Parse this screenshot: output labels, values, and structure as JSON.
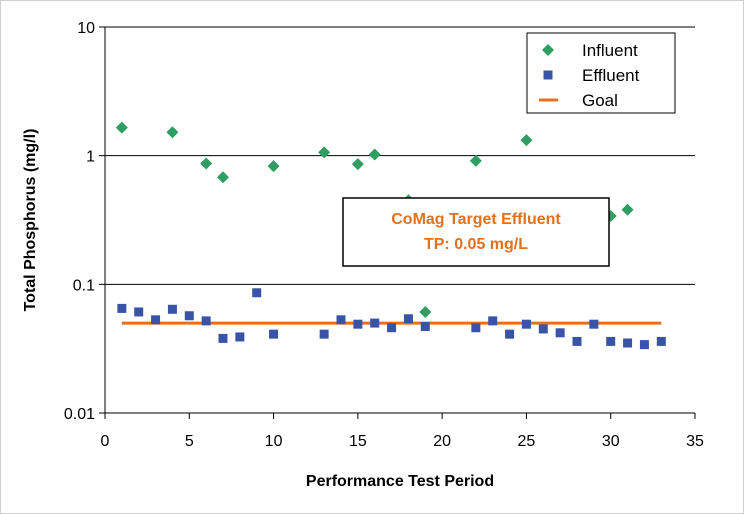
{
  "chart_data": {
    "type": "scatter",
    "xlabel": "Performance Test Period",
    "ylabel": "Total Phosphorus (mg/l)",
    "x_ticks": [
      "0",
      "5",
      "10",
      "15",
      "20",
      "25",
      "30",
      "35"
    ],
    "y_ticks": [
      "0.01",
      "0.1",
      "1",
      "10"
    ],
    "xlim": [
      0,
      35
    ],
    "ylim": [
      0.01,
      10
    ],
    "y_scale": "log",
    "grid": "horizontal lines at each decade",
    "legend_placement": "top-right",
    "annotation": {
      "line1": "CoMag Target Effluent",
      "line2": "TP: 0.05 mg/L"
    },
    "series": [
      {
        "name": "Influent",
        "marker": "diamond",
        "color": "#2e9e62",
        "points": [
          [
            1,
            1.65
          ],
          [
            4,
            1.52
          ],
          [
            6,
            0.87
          ],
          [
            7,
            0.68
          ],
          [
            10,
            0.83
          ],
          [
            13,
            1.06
          ],
          [
            15,
            0.86
          ],
          [
            16,
            1.02
          ],
          [
            18,
            0.45
          ],
          [
            19,
            0.061
          ],
          [
            22,
            0.91
          ],
          [
            25,
            1.32
          ],
          [
            30,
            0.34
          ],
          [
            31,
            0.38
          ]
        ]
      },
      {
        "name": "Effluent",
        "marker": "square",
        "color": "#3953a6",
        "points": [
          [
            1,
            0.065
          ],
          [
            2,
            0.061
          ],
          [
            3,
            0.053
          ],
          [
            4,
            0.064
          ],
          [
            5,
            0.057
          ],
          [
            6,
            0.052
          ],
          [
            7,
            0.038
          ],
          [
            8,
            0.039
          ],
          [
            9,
            0.086
          ],
          [
            10,
            0.041
          ],
          [
            13,
            0.041
          ],
          [
            14,
            0.053
          ],
          [
            15,
            0.049
          ],
          [
            16,
            0.05
          ],
          [
            17,
            0.046
          ],
          [
            18,
            0.054
          ],
          [
            19,
            0.047
          ],
          [
            22,
            0.046
          ],
          [
            23,
            0.052
          ],
          [
            24,
            0.041
          ],
          [
            25,
            0.049
          ],
          [
            26,
            0.045
          ],
          [
            27,
            0.042
          ],
          [
            28,
            0.036
          ],
          [
            29,
            0.049
          ],
          [
            30,
            0.036
          ],
          [
            31,
            0.035
          ],
          [
            32,
            0.034
          ],
          [
            33,
            0.036
          ]
        ]
      },
      {
        "name": "Goal",
        "marker": "line",
        "color": "#e8701c",
        "points": [
          [
            1,
            0.05
          ],
          [
            33,
            0.05
          ]
        ]
      }
    ]
  }
}
